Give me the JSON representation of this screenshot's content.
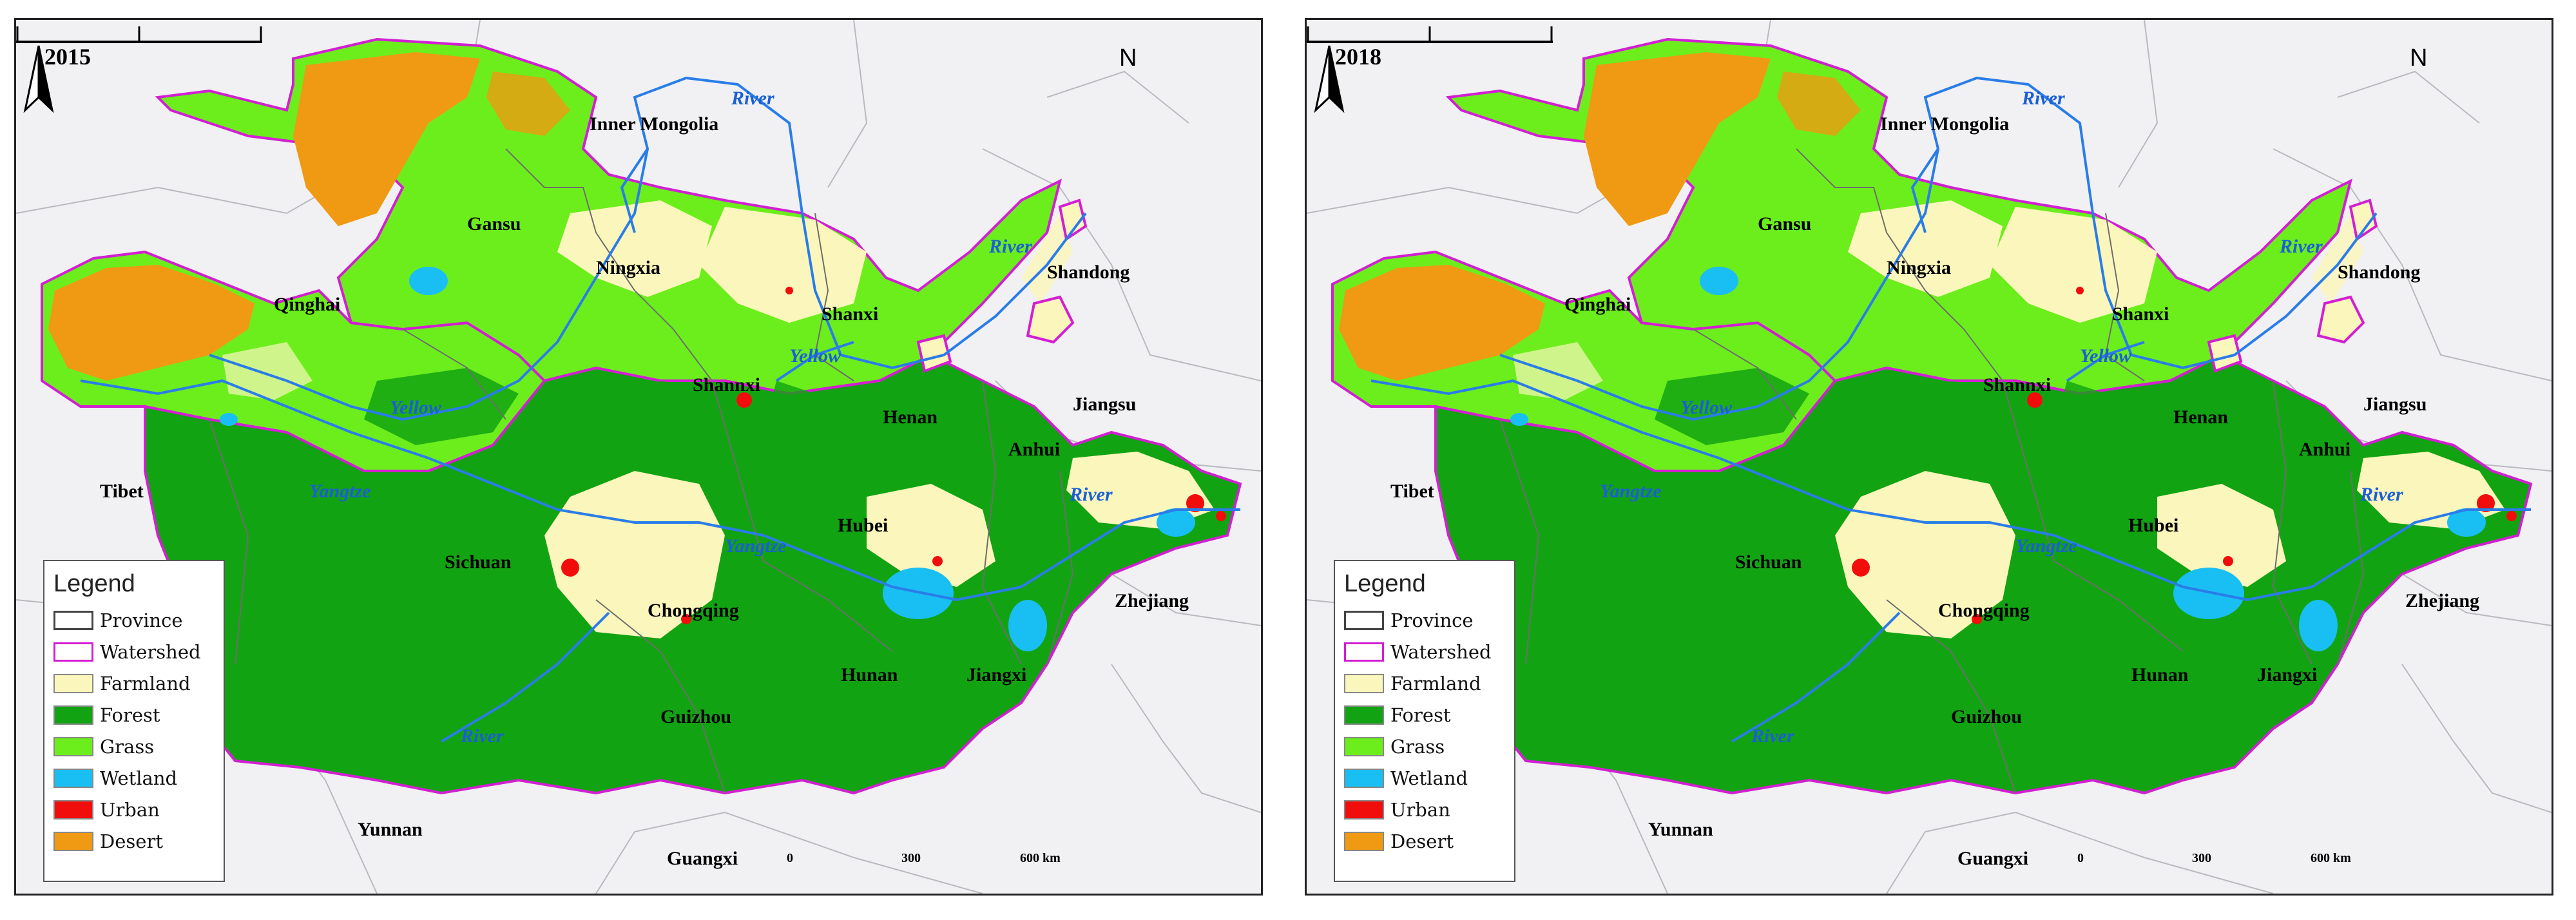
{
  "legend": {
    "title": "Legend",
    "items": [
      {
        "key": "province",
        "label": "Province",
        "fill": "#ffffff",
        "stroke": "#444444"
      },
      {
        "key": "watershed",
        "label": "Watershed",
        "fill": "#ffffff",
        "stroke": "#d21fd2"
      },
      {
        "key": "farmland",
        "label": "Farmland",
        "fill": "#fbf6bc",
        "stroke": "#888888"
      },
      {
        "key": "forest",
        "label": "Forest",
        "fill": "#12a312",
        "stroke": "#888888"
      },
      {
        "key": "grass",
        "label": "Grass",
        "fill": "#6cee1c",
        "stroke": "#888888"
      },
      {
        "key": "wetland",
        "label": "Wetland",
        "fill": "#19bff2",
        "stroke": "#888888"
      },
      {
        "key": "urban",
        "label": "Urban",
        "fill": "#f20d0d",
        "stroke": "#888888"
      },
      {
        "key": "desert",
        "label": "Desert",
        "fill": "#ef9a12",
        "stroke": "#888888"
      }
    ]
  },
  "north_arrow": {
    "letter": "N"
  },
  "scale": {
    "ticks": [
      "0",
      "300",
      "600 km"
    ]
  },
  "provinces": {
    "inner_mongolia": "Inner Mongolia",
    "gansu": "Gansu",
    "ningxia": "Ningxia",
    "qinghai": "Qinghai",
    "shanxi": "Shanxi",
    "shandong": "Shandong",
    "shannxi": "Shannxi",
    "henan": "Henan",
    "jiangsu": "Jiangsu",
    "anhui": "Anhui",
    "tibet": "Tibet",
    "sichuan": "Sichuan",
    "hubei": "Hubei",
    "chongqing": "Chongqing",
    "zhejiang": "Zhejiang",
    "hunan": "Hunan",
    "jiangxi": "Jiangxi",
    "guizhou": "Guizhou",
    "yunnan": "Yunnan",
    "guangxi": "Guangxi"
  },
  "rivers": {
    "river_north": "River",
    "river_shandong": "River",
    "yellow_east": "Yellow",
    "yellow_west": "Yellow",
    "yangtze_west": "Yangtze",
    "yangtze_middle": "Yangtze",
    "river_east": "River",
    "river_south": "River"
  },
  "panels": [
    {
      "year": "2015"
    },
    {
      "year": "2018"
    }
  ],
  "colors": {
    "background": "#f1f1f3",
    "watershed_outline": "#d21fd2",
    "river_line": "#2a7de8",
    "farmland": "#fbf6bc",
    "forest": "#12a312",
    "grass": "#6cee1c",
    "wetland": "#19bff2",
    "urban": "#f20d0d",
    "desert": "#ef9a12"
  }
}
